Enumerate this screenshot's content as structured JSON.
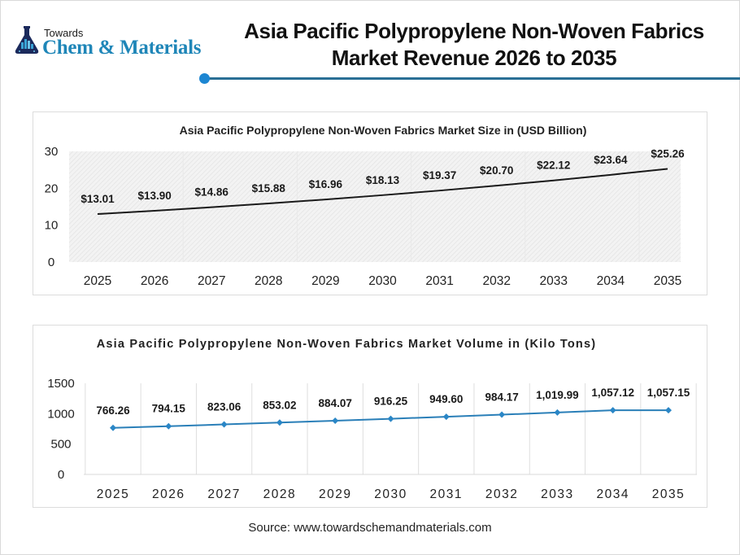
{
  "brand": {
    "towards": "Towards",
    "name": "Chem & Materials",
    "icon": "flask-chart-icon",
    "colors": {
      "primary": "#1f86b8",
      "dark": "#1b2a5c"
    }
  },
  "header": {
    "title_line1": "Asia Pacific Polypropylene Non-Woven Fabrics",
    "title_line2": "Market Revenue 2026 to 2035",
    "rule_color": "#2a6f95",
    "dot_color": "#1d86d2"
  },
  "chart_data": [
    {
      "type": "line",
      "title": "Asia Pacific Polypropylene Non-Woven Fabrics Market Size in (USD Billion)",
      "xlabel": "",
      "ylabel": "",
      "categories": [
        "2025",
        "2026",
        "2027",
        "2028",
        "2029",
        "2030",
        "2031",
        "2032",
        "2033",
        "2034",
        "2035"
      ],
      "values": [
        13.01,
        13.9,
        14.86,
        15.88,
        16.96,
        18.13,
        19.37,
        20.7,
        22.12,
        23.64,
        25.26
      ],
      "data_labels": [
        "$13.01",
        "$13.90",
        "$14.86",
        "$15.88",
        "$16.96",
        "$18.13",
        "$19.37",
        "$20.70",
        "$22.12",
        "$23.64",
        "$25.26"
      ],
      "yticks": [
        0,
        10,
        20,
        30
      ],
      "ylim": [
        0,
        30
      ],
      "grid": false,
      "legend": null,
      "line_color": "#1a1a1a",
      "plot_background": "hatched light gray"
    },
    {
      "type": "line",
      "title": "Asia Pacific Polypropylene Non-Woven Fabrics Market Volume in (Kilo Tons)",
      "xlabel": "",
      "ylabel": "",
      "categories": [
        "2025",
        "2026",
        "2027",
        "2028",
        "2029",
        "2030",
        "2031",
        "2032",
        "2033",
        "2034",
        "2035"
      ],
      "values": [
        766.26,
        794.15,
        823.06,
        853.02,
        884.07,
        916.25,
        949.6,
        984.17,
        1019.99,
        1057.12,
        1057.15
      ],
      "data_labels": [
        "766.26",
        "794.15",
        "823.06",
        "853.02",
        "884.07",
        "916.25",
        "949.60",
        "984.17",
        "1,019.99",
        "1,057.12",
        "1,057.15"
      ],
      "yticks": [
        0,
        500,
        1000,
        1500
      ],
      "ylim": [
        0,
        1500
      ],
      "grid": "vertical",
      "legend": null,
      "line_color": "#2a7fb8",
      "marker": "diamond"
    }
  ],
  "chart1": {
    "title": "Asia Pacific Polypropylene Non-Woven Fabrics Market Size in (USD Billion)"
  },
  "chart2": {
    "title": "Asia Pacific Polypropylene Non-Woven Fabrics Market Volume in (Kilo Tons)"
  },
  "footer": {
    "source": "Source: www.towardschemandmaterials.com"
  }
}
